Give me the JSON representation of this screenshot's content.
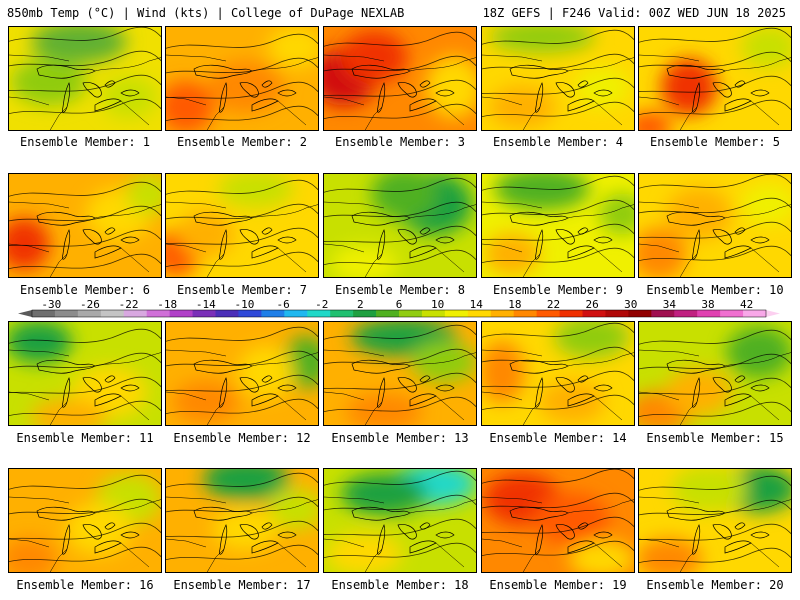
{
  "header": {
    "left": "850mb Temp (°C) | Wind (kts) | College of DuPage NEXLAB",
    "right": "18Z GEFS | F246 Valid: 00Z WED JUN 18 2025"
  },
  "colorbar": {
    "labels": [
      "-30",
      "-26",
      "-22",
      "-18",
      "-14",
      "-10",
      "-6",
      "-2",
      "2",
      "6",
      "10",
      "14",
      "18",
      "22",
      "26",
      "30",
      "34",
      "38",
      "42"
    ],
    "colors": [
      "#6f6f6f",
      "#8c8c8c",
      "#a9a9a9",
      "#c4c4c4",
      "#d8a8e0",
      "#d070d8",
      "#b040c8",
      "#7a30b8",
      "#4b2fb8",
      "#2f49d8",
      "#1f7fe8",
      "#1fb8f0",
      "#20d8c8",
      "#20c070",
      "#1fa040",
      "#50b020",
      "#90cc10",
      "#c8e000",
      "#f0f000",
      "#ffd800",
      "#ffb000",
      "#ff8800",
      "#ff5a00",
      "#f03000",
      "#d01010",
      "#b00808",
      "#900000",
      "#a01050",
      "#c02080",
      "#e040b0",
      "#f070d0",
      "#f8a8e8"
    ]
  },
  "panels": [
    {
      "caption": "Ensemble Member: 1",
      "bg": "#f0e000",
      "blobs": [
        [
          "#60b030",
          70,
          15,
          80,
          30
        ],
        [
          "#90cc10",
          40,
          55,
          60,
          35
        ],
        [
          "#c8e000",
          120,
          70,
          40,
          30
        ]
      ]
    },
    {
      "caption": "Ensemble Member: 2",
      "bg": "#ffb000",
      "blobs": [
        [
          "#ff5a00",
          20,
          80,
          40,
          40
        ],
        [
          "#ff8800",
          80,
          60,
          60,
          40
        ],
        [
          "#ffd800",
          130,
          20,
          40,
          30
        ]
      ]
    },
    {
      "caption": "Ensemble Member: 3",
      "bg": "#ff8800",
      "blobs": [
        [
          "#d01010",
          20,
          50,
          50,
          45
        ],
        [
          "#f03000",
          50,
          30,
          50,
          40
        ],
        [
          "#ffd800",
          130,
          60,
          40,
          50
        ]
      ]
    },
    {
      "caption": "Ensemble Member: 4",
      "bg": "#ffd800",
      "blobs": [
        [
          "#90cc10",
          60,
          10,
          90,
          20
        ],
        [
          "#ffb000",
          40,
          80,
          50,
          30
        ],
        [
          "#f0f000",
          120,
          60,
          40,
          30
        ]
      ]
    },
    {
      "caption": "Ensemble Member: 5",
      "bg": "#ffd800",
      "blobs": [
        [
          "#f03000",
          50,
          60,
          40,
          45
        ],
        [
          "#ff5a00",
          10,
          100,
          30,
          20
        ],
        [
          "#c8e000",
          130,
          20,
          40,
          30
        ]
      ]
    },
    {
      "caption": "Ensemble Member: 6",
      "bg": "#ffb000",
      "blobs": [
        [
          "#f03000",
          15,
          70,
          35,
          40
        ],
        [
          "#ffd800",
          110,
          40,
          50,
          40
        ],
        [
          "#c8e000",
          140,
          20,
          30,
          30
        ]
      ]
    },
    {
      "caption": "Ensemble Member: 7",
      "bg": "#ffd800",
      "blobs": [
        [
          "#ff5a00",
          10,
          80,
          30,
          35
        ],
        [
          "#ffb000",
          40,
          60,
          40,
          35
        ],
        [
          "#c8e000",
          90,
          15,
          60,
          25
        ]
      ]
    },
    {
      "caption": "Ensemble Member: 8",
      "bg": "#c8e000",
      "blobs": [
        [
          "#1fa040",
          110,
          30,
          60,
          50
        ],
        [
          "#50b020",
          80,
          20,
          50,
          40
        ],
        [
          "#f0f000",
          40,
          90,
          50,
          25
        ]
      ]
    },
    {
      "caption": "Ensemble Member: 9",
      "bg": "#f0f000",
      "blobs": [
        [
          "#50b020",
          60,
          15,
          80,
          30
        ],
        [
          "#ffb000",
          30,
          80,
          40,
          30
        ],
        [
          "#90cc10",
          140,
          40,
          30,
          30
        ]
      ]
    },
    {
      "caption": "Ensemble Member: 10",
      "bg": "#ffd800",
      "blobs": [
        [
          "#ff8800",
          20,
          80,
          40,
          40
        ],
        [
          "#ffb000",
          60,
          40,
          50,
          40
        ],
        [
          "#f0f000",
          130,
          30,
          40,
          30
        ]
      ]
    },
    {
      "caption": "Ensemble Member: 11",
      "bg": "#c8e000",
      "blobs": [
        [
          "#1fa040",
          30,
          20,
          50,
          30
        ],
        [
          "#ffd800",
          100,
          70,
          60,
          40
        ],
        [
          "#ffb000",
          60,
          95,
          60,
          25
        ]
      ]
    },
    {
      "caption": "Ensemble Member: 12",
      "bg": "#ffb000",
      "blobs": [
        [
          "#50b020",
          140,
          40,
          30,
          40
        ],
        [
          "#ffd800",
          100,
          50,
          40,
          40
        ],
        [
          "#ff8800",
          40,
          80,
          50,
          30
        ]
      ]
    },
    {
      "caption": "Ensemble Member: 13",
      "bg": "#ffb000",
      "blobs": [
        [
          "#1fa040",
          80,
          15,
          90,
          25
        ],
        [
          "#90cc10",
          120,
          40,
          50,
          30
        ],
        [
          "#ff8800",
          60,
          90,
          60,
          25
        ]
      ]
    },
    {
      "caption": "Ensemble Member: 14",
      "bg": "#ffd800",
      "blobs": [
        [
          "#90cc10",
          110,
          15,
          60,
          30
        ],
        [
          "#ff8800",
          20,
          50,
          30,
          50
        ],
        [
          "#ffb000",
          90,
          80,
          50,
          30
        ]
      ]
    },
    {
      "caption": "Ensemble Member: 15",
      "bg": "#c8e000",
      "blobs": [
        [
          "#50b020",
          120,
          30,
          50,
          40
        ],
        [
          "#ff8800",
          20,
          90,
          50,
          30
        ],
        [
          "#ffb000",
          60,
          70,
          50,
          35
        ]
      ]
    },
    {
      "caption": "Ensemble Member: 16",
      "bg": "#ffb000",
      "blobs": [
        [
          "#c8e000",
          120,
          30,
          50,
          40
        ],
        [
          "#ffd800",
          90,
          60,
          50,
          40
        ],
        [
          "#ff8800",
          20,
          90,
          40,
          30
        ]
      ]
    },
    {
      "caption": "Ensemble Member: 17",
      "bg": "#ffb000",
      "blobs": [
        [
          "#1fa040",
          80,
          10,
          70,
          30
        ],
        [
          "#c8e000",
          130,
          40,
          40,
          30
        ],
        [
          "#ffd800",
          80,
          60,
          50,
          30
        ]
      ]
    },
    {
      "caption": "Ensemble Member: 18",
      "bg": "#c8e000",
      "blobs": [
        [
          "#20d8c8",
          110,
          15,
          70,
          30
        ],
        [
          "#1fa040",
          60,
          25,
          70,
          30
        ],
        [
          "#ffd800",
          40,
          85,
          60,
          30
        ]
      ]
    },
    {
      "caption": "Ensemble Member: 19",
      "bg": "#ff8800",
      "blobs": [
        [
          "#f03000",
          40,
          30,
          60,
          40
        ],
        [
          "#ff5a00",
          90,
          50,
          60,
          40
        ],
        [
          "#ffd800",
          120,
          90,
          50,
          25
        ]
      ]
    },
    {
      "caption": "Ensemble Member: 20",
      "bg": "#ffd800",
      "blobs": [
        [
          "#1fa040",
          120,
          20,
          60,
          35
        ],
        [
          "#c8e000",
          70,
          20,
          60,
          35
        ],
        [
          "#ff8800",
          30,
          90,
          50,
          30
        ]
      ]
    }
  ]
}
